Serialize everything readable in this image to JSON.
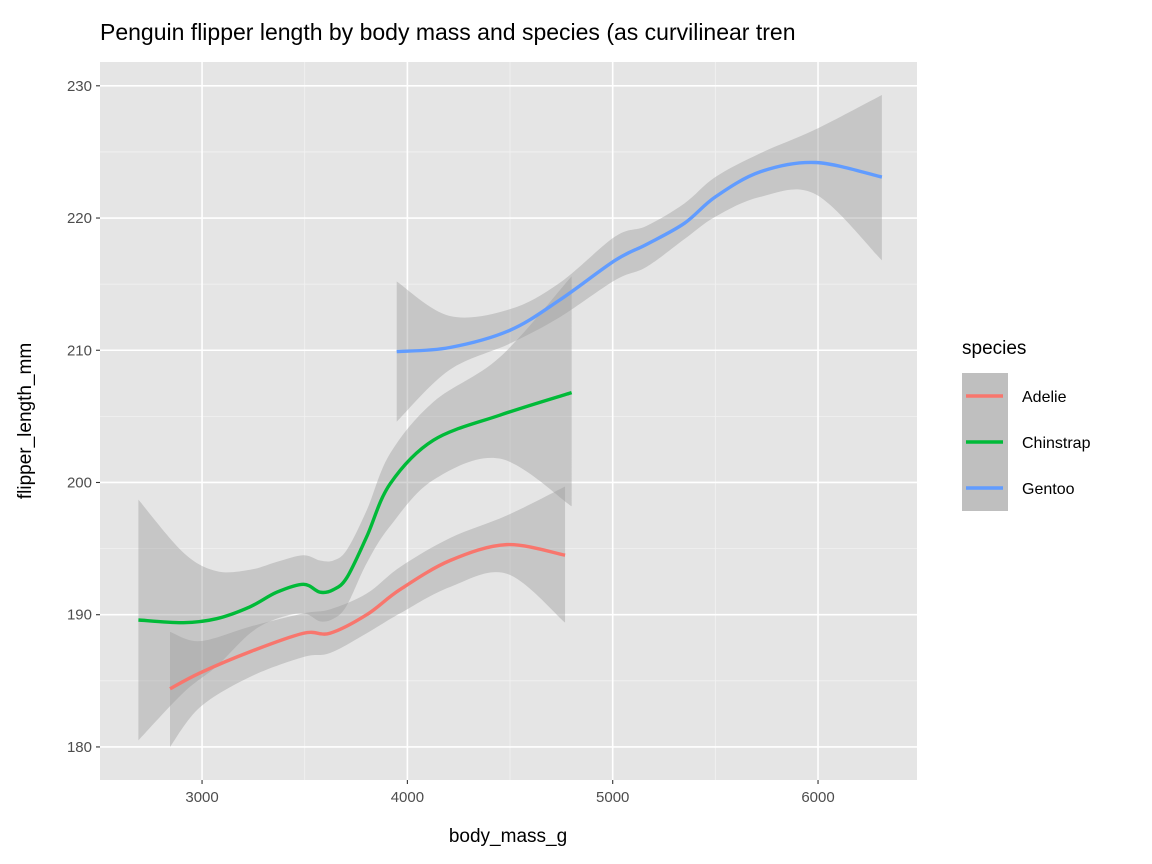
{
  "chart_data": {
    "type": "line",
    "title": "Penguin flipper length by body mass and species (as curvilinear tren",
    "xlabel": "body_mass_g",
    "ylabel": "flipper_length_mm",
    "xlim": [
      2503,
      6482
    ],
    "ylim": [
      177.5,
      231.8
    ],
    "x_ticks": [
      3000,
      4000,
      5000,
      6000
    ],
    "y_ticks": [
      180,
      190,
      200,
      210,
      220,
      230
    ],
    "grid": true,
    "background": "#E5E5E5",
    "ribbon_color": "#999999",
    "legend": {
      "title": "species",
      "position": "right"
    },
    "series": [
      {
        "name": "Adelie",
        "color": "#F8766D",
        "x": [
          2844,
          2990,
          3234,
          3494,
          3623,
          3802,
          3964,
          4208,
          4484,
          4768
        ],
        "y": [
          184.4,
          185.6,
          187.2,
          188.6,
          188.6,
          190.0,
          191.9,
          194.1,
          195.3,
          194.5
        ],
        "upper": [
          188.7,
          188.0,
          189.1,
          190.1,
          190.4,
          191.6,
          193.6,
          195.8,
          197.5,
          199.7
        ],
        "lower": [
          180.0,
          183.0,
          185.3,
          186.8,
          187.1,
          188.6,
          190.1,
          192.1,
          193.1,
          189.4
        ]
      },
      {
        "name": "Chinstrap",
        "color": "#00BA38",
        "x": [
          2690,
          2909,
          3071,
          3234,
          3364,
          3494,
          3575,
          3640,
          3705,
          3802,
          3916,
          4127,
          4452,
          4800
        ],
        "y": [
          189.6,
          189.4,
          189.7,
          190.6,
          191.7,
          192.3,
          191.7,
          191.9,
          192.8,
          195.9,
          199.9,
          203.2,
          205.1,
          206.8
        ],
        "upper": [
          198.7,
          194.7,
          193.3,
          193.4,
          194.0,
          194.5,
          194.1,
          194.1,
          194.9,
          197.9,
          202.2,
          206.1,
          209.5,
          215.6
        ],
        "lower": [
          180.5,
          184.1,
          186.1,
          188.6,
          189.7,
          190.1,
          189.5,
          189.7,
          190.7,
          193.9,
          196.7,
          200.2,
          201.8,
          198.2
        ]
      },
      {
        "name": "Gentoo",
        "color": "#619CFF",
        "x": [
          3948,
          4204,
          4498,
          4742,
          5012,
          5164,
          5349,
          5500,
          5719,
          5988,
          6311
        ],
        "y": [
          209.9,
          210.2,
          211.5,
          213.8,
          216.8,
          218.0,
          219.6,
          221.6,
          223.5,
          224.2,
          223.1
        ],
        "upper": [
          215.2,
          212.6,
          213.1,
          215.1,
          218.6,
          219.4,
          221.1,
          223.1,
          224.9,
          226.7,
          229.3
        ],
        "lower": [
          204.6,
          208.5,
          210.5,
          212.5,
          215.3,
          216.3,
          218.4,
          220.1,
          221.6,
          221.8,
          216.8
        ]
      }
    ]
  }
}
